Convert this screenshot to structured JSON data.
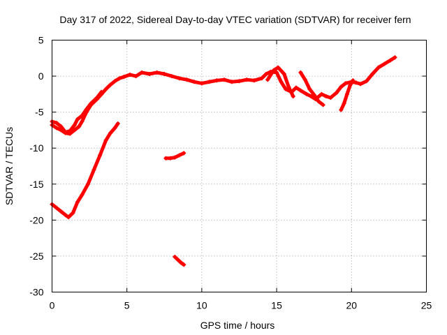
{
  "chart_data": {
    "type": "line",
    "title": "Day 317 of 2022, Sidereal Day-to-day VTEC variation (SDTVAR) for receiver fern",
    "xlabel": "GPS time / hours",
    "ylabel": "SDTVAR / TECUs",
    "xlim": [
      0,
      25
    ],
    "ylim": [
      -30,
      5
    ],
    "xticks": [
      0,
      5,
      10,
      15,
      20,
      25
    ],
    "yticks": [
      5,
      0,
      -5,
      -10,
      -15,
      -20,
      -25,
      -30
    ],
    "grid": true,
    "legend": "none",
    "color": "#ff0000",
    "series": [
      {
        "name": "sdtvar-main",
        "x": [
          0,
          0.3,
          0.6,
          0.9,
          1.2,
          1.5,
          1.8,
          2.0,
          2.3,
          2.6,
          3.0,
          3.3,
          3.6,
          3.9,
          4.2,
          4.5,
          4.8,
          5.2,
          5.6,
          6.0,
          6.5,
          7.0,
          7.5,
          8.0,
          8.5,
          9.0,
          9.5,
          10.0,
          10.5,
          11.0,
          11.5,
          12.0,
          12.5,
          13.0,
          13.5,
          14.0,
          14.3,
          14.6,
          15.0,
          15.3,
          15.6,
          16.0,
          16.3,
          16.6,
          17.0,
          17.3,
          17.6,
          18.0,
          18.3,
          18.6,
          19.0,
          19.3,
          19.6,
          20.0,
          20.3,
          20.6,
          21.0,
          21.4,
          21.8,
          22.2,
          22.6,
          22.9
        ],
        "values": [
          -6.8,
          -7.2,
          -7.5,
          -7.9,
          -8.0,
          -7.5,
          -7.0,
          -6.3,
          -5.0,
          -4.0,
          -3.2,
          -2.5,
          -1.8,
          -1.2,
          -0.7,
          -0.3,
          -0.1,
          0.2,
          0.0,
          0.5,
          0.3,
          0.5,
          0.3,
          0.0,
          -0.3,
          -0.5,
          -0.8,
          -1.0,
          -0.8,
          -0.6,
          -0.5,
          -0.8,
          -0.7,
          -0.5,
          -0.6,
          -0.3,
          0.3,
          0.6,
          0.5,
          -0.8,
          -1.8,
          -2.2,
          -1.6,
          -2.0,
          -2.5,
          -2.8,
          -3.2,
          -2.5,
          -2.8,
          -3.0,
          -2.3,
          -1.5,
          -1.0,
          -0.8,
          -0.9,
          -1.1,
          -0.7,
          0.3,
          1.2,
          1.7,
          2.2,
          2.6
        ]
      },
      {
        "name": "sdtvar-branch-b",
        "x": [
          0,
          0.3,
          0.6,
          0.9,
          1.2,
          1.5,
          1.7,
          2.0,
          2.3,
          2.6,
          3.0,
          3.3
        ],
        "values": [
          -6.3,
          -6.5,
          -7.0,
          -7.8,
          -7.6,
          -6.8,
          -6.0,
          -5.5,
          -4.6,
          -3.8,
          -3.0,
          -2.2
        ]
      },
      {
        "name": "sdtvar-branch-c",
        "x": [
          14.4,
          14.8,
          15.1,
          15.5,
          15.8,
          16.1
        ],
        "values": [
          -0.5,
          0.8,
          1.2,
          0.3,
          -1.5,
          -2.8
        ]
      },
      {
        "name": "sdtvar-branch-d",
        "x": [
          16.6,
          16.9,
          17.2,
          17.5,
          17.8,
          18.1
        ],
        "values": [
          0.5,
          -0.5,
          -1.8,
          -2.6,
          -3.5,
          -4.0
        ]
      },
      {
        "name": "sdtvar-branch-e",
        "x": [
          19.3,
          19.5,
          19.7,
          19.9,
          20.1
        ],
        "values": [
          -4.7,
          -3.8,
          -2.5,
          -1.3,
          -0.6
        ]
      },
      {
        "name": "sdtvar-lower-arc",
        "x": [
          0,
          0.3,
          0.6,
          0.9,
          1.1,
          1.4,
          1.7,
          2.0,
          2.4,
          2.8,
          3.2,
          3.6,
          3.9,
          4.2,
          4.4
        ],
        "values": [
          -17.8,
          -18.3,
          -18.8,
          -19.3,
          -19.6,
          -19.0,
          -17.5,
          -16.5,
          -15.0,
          -13.0,
          -11.0,
          -8.9,
          -7.9,
          -7.2,
          -6.6
        ]
      },
      {
        "name": "sdtvar-fragment-11",
        "x": [
          7.6,
          7.9,
          8.2,
          8.5,
          8.8
        ],
        "values": [
          -11.4,
          -11.4,
          -11.3,
          -11.0,
          -10.7
        ]
      },
      {
        "name": "sdtvar-fragment-26",
        "x": [
          8.2,
          8.4,
          8.6,
          8.8
        ],
        "values": [
          -25.1,
          -25.5,
          -25.9,
          -26.2
        ]
      }
    ]
  }
}
